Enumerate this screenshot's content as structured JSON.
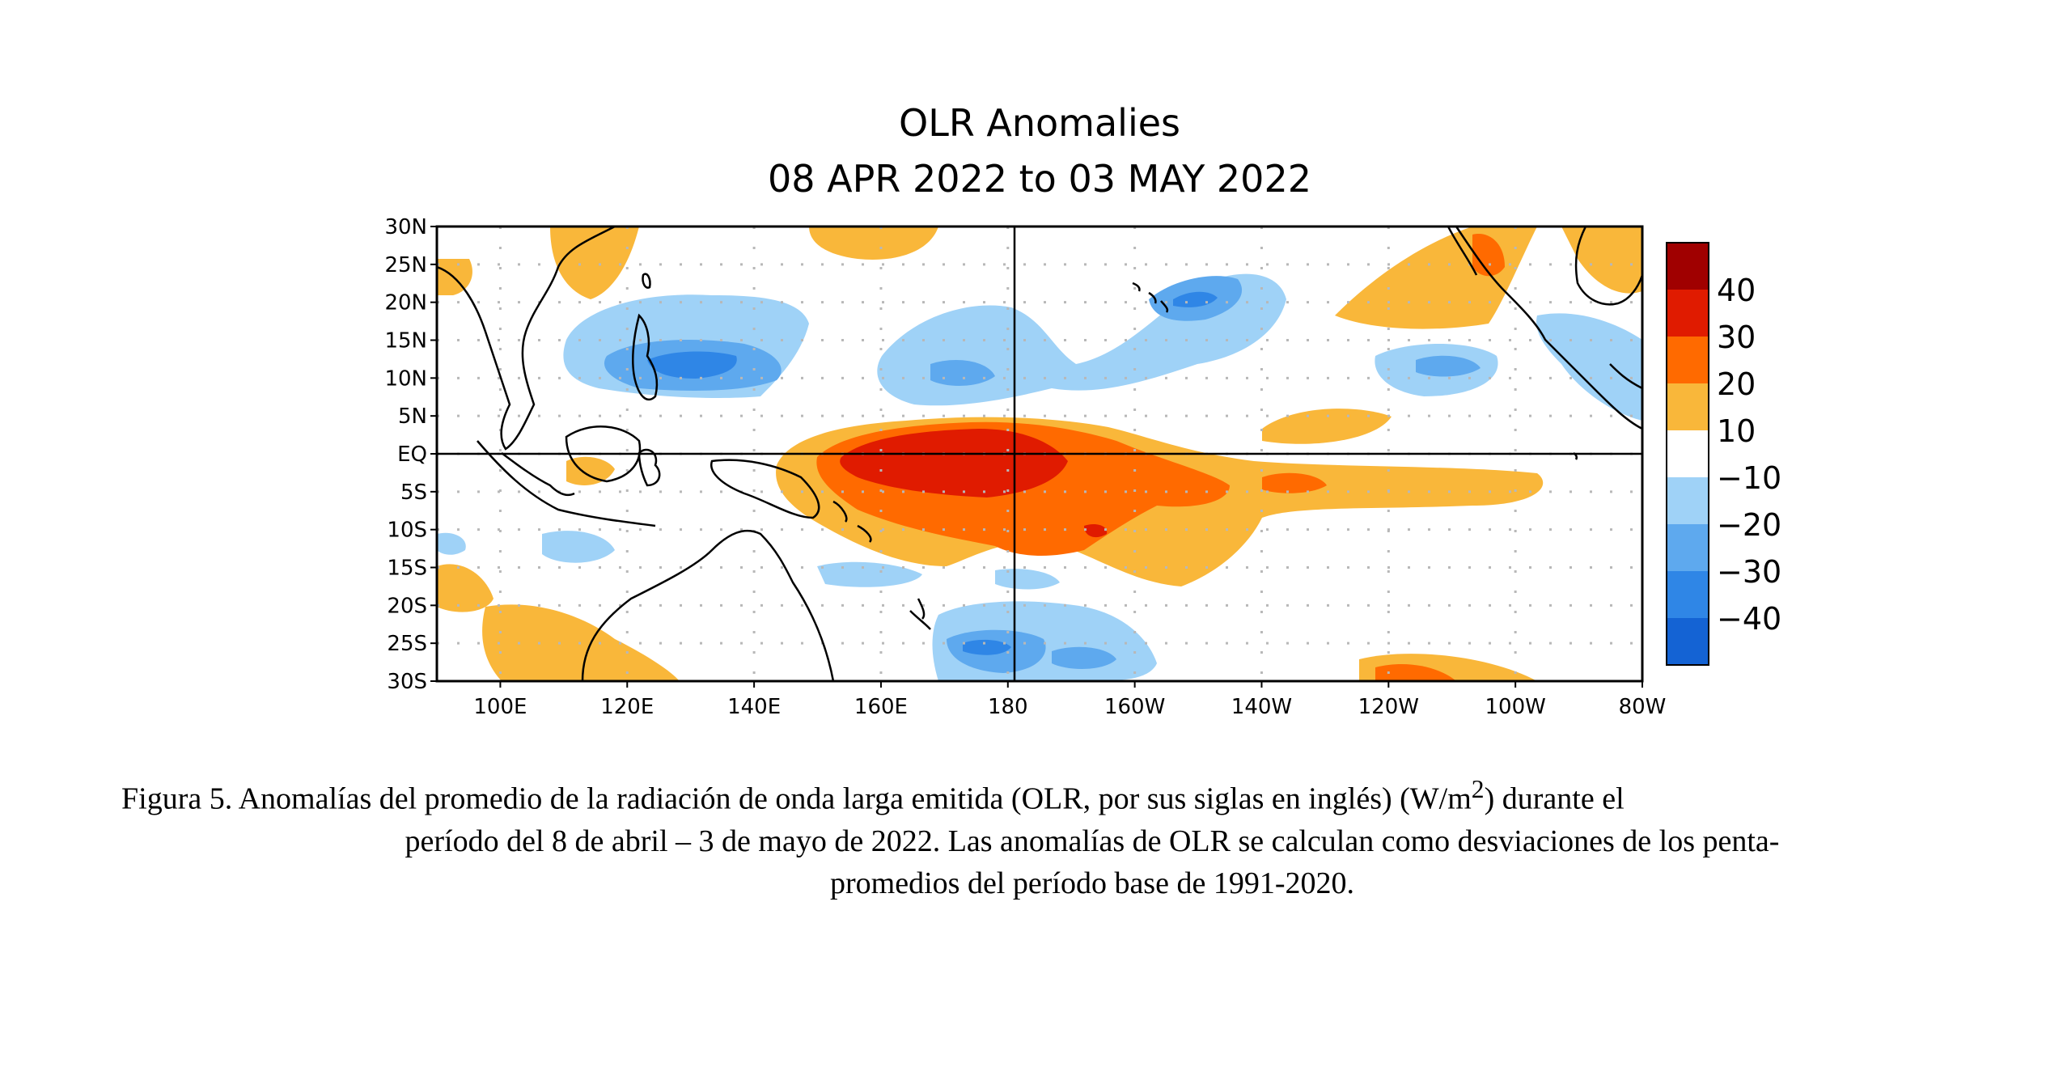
{
  "map": {
    "title": "OLR Anomalies",
    "subtitle": "08 APR 2022 to 03 MAY 2022",
    "lat_labels": [
      "30N",
      "25N",
      "20N",
      "15N",
      "10N",
      "5N",
      "EQ",
      "5S",
      "10S",
      "15S",
      "20S",
      "25S",
      "30S"
    ],
    "lon_labels": [
      "100E",
      "120E",
      "140E",
      "160E",
      "180",
      "160W",
      "140W",
      "120W",
      "100W",
      "80W"
    ],
    "lat_range": [
      -30,
      30
    ],
    "lon_range": [
      90,
      280
    ],
    "grid": "dotted"
  },
  "colorbar": {
    "labels": [
      "40",
      "30",
      "20",
      "10",
      "−10",
      "−20",
      "−30",
      "−40"
    ],
    "colors": {
      "pos40": "#a00000",
      "pos30": "#e01b00",
      "pos20": "#ff6a00",
      "pos10": "#f9b73a",
      "neutral": "#ffffff",
      "neg10": "#9fd2f7",
      "neg20": "#5ea9ee",
      "neg30": "#2f86e6",
      "neg40": "#1463d4"
    }
  },
  "caption": {
    "part1": "Figura 5. Anomalías del promedio de la radiación de onda larga emitida (OLR, por sus siglas en inglés) (W/m",
    "sup": "2",
    "part2": ") durante el",
    "line2": "período del 8 de abril – 3 de mayo de 2022.  Las anomalías de OLR se calculan como desviaciones de los penta-",
    "line3": "promedios del período base de 1991-2020."
  }
}
